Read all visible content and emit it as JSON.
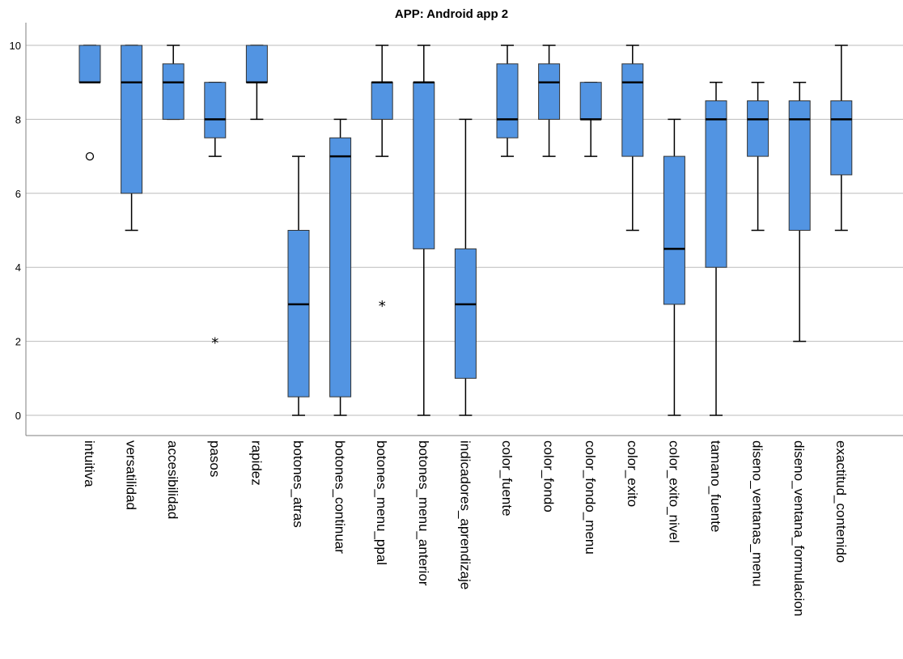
{
  "chart_data": {
    "type": "boxplot",
    "title": "APP: Android app 2",
    "xlabel": "",
    "ylabel": "",
    "ylim": [
      0,
      10
    ],
    "yticks": [
      0,
      2,
      4,
      6,
      8,
      10
    ],
    "grid": "horizontal",
    "colors": {
      "box_fill": "#5294E2",
      "box_stroke": "#333333",
      "grid": "#BBBBBB",
      "axis": "#7F7F7F"
    },
    "categories": [
      "intuitiva",
      "versatilidad",
      "accesibilidad",
      "pasos",
      "rapidez",
      "botones_atras",
      "botones_continuar",
      "botones_menu_ppal",
      "botones_menu_anterior",
      "indicadores_aprendizaje",
      "color_fuente",
      "color_fondo",
      "color_fondo_menu",
      "color_exito",
      "color_exito_nivel",
      "tamano_fuente",
      "diseno_ventanas_menu",
      "diseno_ventana_formulacion",
      "exactitud_contenido"
    ],
    "boxes": [
      {
        "whisker_low": 9,
        "q1": 9,
        "median": 9,
        "q3": 10,
        "whisker_high": 10,
        "outliers": [
          {
            "value": 7,
            "symbol": "circle"
          }
        ]
      },
      {
        "whisker_low": 5,
        "q1": 6,
        "median": 9,
        "q3": 10,
        "whisker_high": 10,
        "outliers": []
      },
      {
        "whisker_low": 8,
        "q1": 8,
        "median": 9,
        "q3": 9.5,
        "whisker_high": 10,
        "outliers": []
      },
      {
        "whisker_low": 7,
        "q1": 7.5,
        "median": 8,
        "q3": 9,
        "whisker_high": 9,
        "outliers": [
          {
            "value": 2,
            "symbol": "star"
          }
        ]
      },
      {
        "whisker_low": 8,
        "q1": 9,
        "median": 9,
        "q3": 10,
        "whisker_high": 10,
        "outliers": []
      },
      {
        "whisker_low": 0,
        "q1": 0.5,
        "median": 3,
        "q3": 5,
        "whisker_high": 7,
        "outliers": []
      },
      {
        "whisker_low": 0,
        "q1": 0.5,
        "median": 7,
        "q3": 7.5,
        "whisker_high": 8,
        "outliers": []
      },
      {
        "whisker_low": 7,
        "q1": 8,
        "median": 9,
        "q3": 9,
        "whisker_high": 10,
        "outliers": [
          {
            "value": 3,
            "symbol": "star"
          }
        ]
      },
      {
        "whisker_low": 0,
        "q1": 4.5,
        "median": 9,
        "q3": 9,
        "whisker_high": 10,
        "outliers": []
      },
      {
        "whisker_low": 0,
        "q1": 1,
        "median": 3,
        "q3": 4.5,
        "whisker_high": 8,
        "outliers": []
      },
      {
        "whisker_low": 7,
        "q1": 7.5,
        "median": 8,
        "q3": 9.5,
        "whisker_high": 10,
        "outliers": []
      },
      {
        "whisker_low": 7,
        "q1": 8,
        "median": 9,
        "q3": 9.5,
        "whisker_high": 10,
        "outliers": []
      },
      {
        "whisker_low": 7,
        "q1": 8,
        "median": 8,
        "q3": 9,
        "whisker_high": 9,
        "outliers": []
      },
      {
        "whisker_low": 5,
        "q1": 7,
        "median": 9,
        "q3": 9.5,
        "whisker_high": 10,
        "outliers": []
      },
      {
        "whisker_low": 0,
        "q1": 3,
        "median": 4.5,
        "q3": 7,
        "whisker_high": 8,
        "outliers": []
      },
      {
        "whisker_low": 0,
        "q1": 4,
        "median": 8,
        "q3": 8.5,
        "whisker_high": 9,
        "outliers": []
      },
      {
        "whisker_low": 5,
        "q1": 7,
        "median": 8,
        "q3": 8.5,
        "whisker_high": 9,
        "outliers": []
      },
      {
        "whisker_low": 2,
        "q1": 5,
        "median": 8,
        "q3": 8.5,
        "whisker_high": 9,
        "outliers": []
      },
      {
        "whisker_low": 5,
        "q1": 6.5,
        "median": 8,
        "q3": 8.5,
        "whisker_high": 10,
        "outliers": []
      }
    ]
  }
}
